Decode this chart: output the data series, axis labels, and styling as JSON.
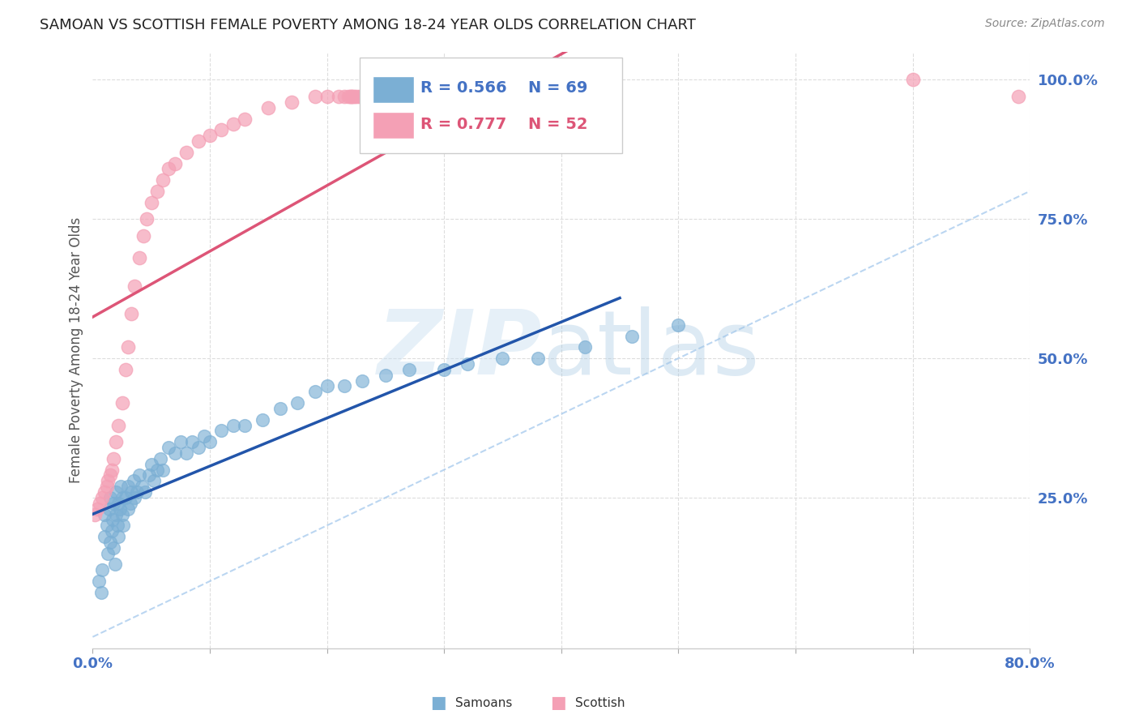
{
  "title": "SAMOAN VS SCOTTISH FEMALE POVERTY AMONG 18-24 YEAR OLDS CORRELATION CHART",
  "source": "Source: ZipAtlas.com",
  "ylabel": "Female Poverty Among 18-24 Year Olds",
  "samoan_color": "#7bafd4",
  "scottish_color": "#f4a0b5",
  "samoan_line_color": "#2255aa",
  "scottish_line_color": "#dd5577",
  "samoan_R": "0.566",
  "samoan_N": "69",
  "scottish_R": "0.777",
  "scottish_N": "52",
  "xlim": [
    0.0,
    0.8
  ],
  "ylim": [
    -0.02,
    1.05
  ],
  "background_color": "#ffffff",
  "grid_color": "#dddddd",
  "axis_label_color": "#4472c4",
  "diagonal_color": "#aaccee",
  "samoan_points_x": [
    0.005,
    0.007,
    0.008,
    0.01,
    0.01,
    0.012,
    0.013,
    0.014,
    0.015,
    0.015,
    0.016,
    0.017,
    0.018,
    0.018,
    0.019,
    0.02,
    0.02,
    0.021,
    0.022,
    0.022,
    0.023,
    0.024,
    0.025,
    0.025,
    0.026,
    0.028,
    0.03,
    0.03,
    0.032,
    0.033,
    0.035,
    0.036,
    0.038,
    0.04,
    0.042,
    0.045,
    0.048,
    0.05,
    0.052,
    0.055,
    0.058,
    0.06,
    0.065,
    0.07,
    0.075,
    0.08,
    0.085,
    0.09,
    0.095,
    0.1,
    0.11,
    0.12,
    0.13,
    0.145,
    0.16,
    0.175,
    0.19,
    0.2,
    0.215,
    0.23,
    0.25,
    0.27,
    0.3,
    0.32,
    0.35,
    0.38,
    0.42,
    0.46,
    0.5
  ],
  "samoan_points_y": [
    0.1,
    0.08,
    0.12,
    0.18,
    0.22,
    0.2,
    0.15,
    0.23,
    0.17,
    0.25,
    0.19,
    0.21,
    0.24,
    0.16,
    0.13,
    0.22,
    0.26,
    0.2,
    0.24,
    0.18,
    0.23,
    0.27,
    0.22,
    0.25,
    0.2,
    0.25,
    0.23,
    0.27,
    0.24,
    0.26,
    0.28,
    0.25,
    0.26,
    0.29,
    0.27,
    0.26,
    0.29,
    0.31,
    0.28,
    0.3,
    0.32,
    0.3,
    0.34,
    0.33,
    0.35,
    0.33,
    0.35,
    0.34,
    0.36,
    0.35,
    0.37,
    0.38,
    0.38,
    0.39,
    0.41,
    0.42,
    0.44,
    0.45,
    0.45,
    0.46,
    0.47,
    0.48,
    0.48,
    0.49,
    0.5,
    0.5,
    0.52,
    0.54,
    0.56
  ],
  "scottish_points_x": [
    0.002,
    0.004,
    0.006,
    0.008,
    0.01,
    0.012,
    0.013,
    0.015,
    0.016,
    0.018,
    0.02,
    0.022,
    0.025,
    0.028,
    0.03,
    0.033,
    0.036,
    0.04,
    0.043,
    0.046,
    0.05,
    0.055,
    0.06,
    0.065,
    0.07,
    0.08,
    0.09,
    0.1,
    0.11,
    0.12,
    0.13,
    0.15,
    0.17,
    0.19,
    0.2,
    0.21,
    0.215,
    0.218,
    0.22,
    0.22,
    0.222,
    0.223,
    0.225,
    0.228,
    0.23,
    0.23,
    0.232,
    0.235,
    0.238,
    0.24,
    0.7,
    0.79
  ],
  "scottish_points_y": [
    0.22,
    0.23,
    0.24,
    0.25,
    0.26,
    0.27,
    0.28,
    0.29,
    0.3,
    0.32,
    0.35,
    0.38,
    0.42,
    0.48,
    0.52,
    0.58,
    0.63,
    0.68,
    0.72,
    0.75,
    0.78,
    0.8,
    0.82,
    0.84,
    0.85,
    0.87,
    0.89,
    0.9,
    0.91,
    0.92,
    0.93,
    0.95,
    0.96,
    0.97,
    0.97,
    0.97,
    0.97,
    0.97,
    0.97,
    0.97,
    0.97,
    0.97,
    0.97,
    0.97,
    0.97,
    0.97,
    0.97,
    0.97,
    0.97,
    0.97,
    1.0,
    0.97
  ]
}
